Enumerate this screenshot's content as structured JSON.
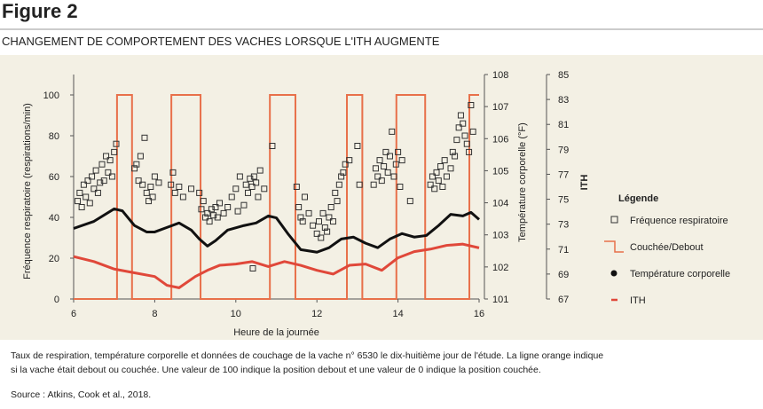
{
  "header": {
    "title": "Figure 2",
    "subtitle": "CHANGEMENT DE COMPORTEMENT DES VACHES LORSQUE L'ITH AUGMENTE"
  },
  "chart_data": {
    "type": "combo",
    "xlabel": "Heure de la journée",
    "ylabel": "Fréquence respiratoire (respirations/min)",
    "y2label": "Température corporelle (°F)",
    "y3label": "ITH",
    "xlim": [
      6,
      16
    ],
    "xticks": [
      6,
      8,
      10,
      12,
      14,
      16
    ],
    "ylim": [
      0,
      110
    ],
    "yticks": [
      0,
      20,
      40,
      60,
      80,
      100
    ],
    "y2lim": [
      101,
      108
    ],
    "y2ticks": [
      101,
      102,
      103,
      104,
      105,
      106,
      107,
      108
    ],
    "y3lim": [
      67,
      85
    ],
    "y3ticks": [
      67,
      69,
      71,
      73,
      75,
      77,
      79,
      81,
      83,
      85
    ],
    "legend_title": "Légende",
    "series": [
      {
        "name": "Fréquence respiratoire",
        "type": "scatter",
        "color": "#333333",
        "x": [
          6.1,
          6.15,
          6.2,
          6.25,
          6.3,
          6.35,
          6.4,
          6.45,
          6.5,
          6.55,
          6.6,
          6.65,
          6.7,
          6.75,
          6.8,
          6.85,
          6.9,
          6.95,
          7.0,
          7.05,
          7.5,
          7.55,
          7.6,
          7.65,
          7.7,
          7.75,
          7.8,
          7.85,
          7.9,
          7.95,
          8.0,
          8.1,
          8.4,
          8.45,
          8.5,
          8.6,
          8.7,
          8.9,
          9.1,
          9.15,
          9.2,
          9.25,
          9.3,
          9.35,
          9.4,
          9.45,
          9.5,
          9.55,
          9.6,
          9.7,
          9.8,
          9.9,
          10.0,
          10.05,
          10.1,
          10.2,
          10.25,
          10.3,
          10.35,
          10.4,
          10.42,
          10.45,
          10.5,
          10.55,
          10.6,
          10.7,
          10.9,
          11.5,
          11.55,
          11.6,
          11.65,
          11.7,
          11.8,
          11.9,
          12.0,
          12.05,
          12.1,
          12.15,
          12.2,
          12.25,
          12.3,
          12.35,
          12.4,
          12.45,
          12.5,
          12.55,
          12.6,
          12.65,
          12.7,
          12.8,
          13.0,
          13.05,
          13.4,
          13.45,
          13.5,
          13.55,
          13.6,
          13.65,
          13.7,
          13.75,
          13.8,
          13.85,
          13.9,
          13.95,
          14.0,
          14.05,
          14.1,
          14.3,
          14.8,
          14.85,
          14.9,
          14.95,
          15.0,
          15.05,
          15.1,
          15.15,
          15.2,
          15.3,
          15.35,
          15.4,
          15.45,
          15.5,
          15.55,
          15.6,
          15.65,
          15.7,
          15.75,
          15.8,
          15.85
        ],
        "values": [
          48,
          52,
          45,
          56,
          50,
          58,
          47,
          60,
          54,
          63,
          52,
          57,
          66,
          58,
          70,
          62,
          68,
          60,
          72,
          76,
          64,
          66,
          58,
          70,
          56,
          79,
          52,
          48,
          55,
          50,
          60,
          57,
          56,
          62,
          52,
          55,
          50,
          54,
          52,
          44,
          48,
          40,
          42,
          38,
          44,
          41,
          45,
          40,
          47,
          42,
          45,
          50,
          54,
          43,
          60,
          46,
          56,
          52,
          59,
          55,
          15,
          60,
          57,
          50,
          63,
          54,
          75,
          55,
          45,
          40,
          38,
          50,
          42,
          36,
          32,
          38,
          30,
          42,
          35,
          33,
          40,
          45,
          38,
          52,
          48,
          56,
          60,
          62,
          66,
          68,
          75,
          56,
          56,
          64,
          60,
          68,
          58,
          65,
          72,
          62,
          70,
          82,
          60,
          66,
          72,
          55,
          68,
          48,
          56,
          60,
          54,
          62,
          58,
          65,
          55,
          68,
          60,
          64,
          72,
          70,
          78,
          84,
          90,
          86,
          80,
          76,
          72,
          95,
          82
        ]
      },
      {
        "name": "Couchée/Debout",
        "type": "step",
        "color": "#e8704a",
        "x": [
          6,
          7.07,
          7.44,
          8.41,
          9.13,
          10.84,
          11.47,
          12.74,
          13.12,
          13.96,
          14.67,
          15.76,
          16
        ],
        "values": [
          0,
          100,
          0,
          100,
          0,
          100,
          0,
          100,
          0,
          100,
          0,
          100,
          100
        ]
      },
      {
        "name": "Température corporelle",
        "type": "line",
        "axis": "y2",
        "color": "#111111",
        "x": [
          6.0,
          6.5,
          7.0,
          7.2,
          7.5,
          7.8,
          8.0,
          8.3,
          8.6,
          8.9,
          9.1,
          9.3,
          9.5,
          9.8,
          10.2,
          10.5,
          10.8,
          11.0,
          11.3,
          11.6,
          12.0,
          12.3,
          12.6,
          12.9,
          13.2,
          13.5,
          13.8,
          14.1,
          14.4,
          14.7,
          15.0,
          15.3,
          15.6,
          15.8,
          16.0
        ],
        "values": [
          103.2,
          103.42,
          103.81,
          103.75,
          103.29,
          103.09,
          103.09,
          103.23,
          103.37,
          103.15,
          102.87,
          102.65,
          102.82,
          103.15,
          103.29,
          103.37,
          103.59,
          103.53,
          103.01,
          102.54,
          102.46,
          102.6,
          102.87,
          102.93,
          102.74,
          102.6,
          102.87,
          103.04,
          102.93,
          102.98,
          103.29,
          103.64,
          103.59,
          103.7,
          103.48
        ]
      },
      {
        "name": "ITH",
        "type": "line",
        "axis": "y3",
        "color": "#e0483a",
        "x": [
          6.0,
          6.5,
          7.0,
          7.5,
          8.0,
          8.3,
          8.6,
          9.0,
          9.3,
          9.6,
          10.0,
          10.4,
          10.8,
          11.2,
          11.6,
          12.0,
          12.4,
          12.8,
          13.2,
          13.6,
          14.0,
          14.4,
          14.8,
          15.2,
          15.6,
          16.0
        ],
        "values": [
          70.4,
          70.0,
          69.4,
          69.1,
          68.8,
          68.1,
          67.9,
          68.8,
          69.3,
          69.7,
          69.8,
          70.0,
          69.6,
          70.0,
          69.7,
          69.3,
          69.0,
          69.7,
          69.8,
          69.3,
          70.3,
          70.8,
          71.0,
          71.3,
          71.4,
          71.1
        ]
      }
    ]
  },
  "caption": [
    "Taux de respiration, température corporelle et données de couchage de la vache n° 6530 le dix-huitième jour de l'étude. La ligne orange indique",
    "si la vache était debout ou couchée. Une valeur de 100 indique la position debout et une valeur de 0 indique la position couchée."
  ],
  "source": "Source : Atkins, Cook et al., 2018."
}
